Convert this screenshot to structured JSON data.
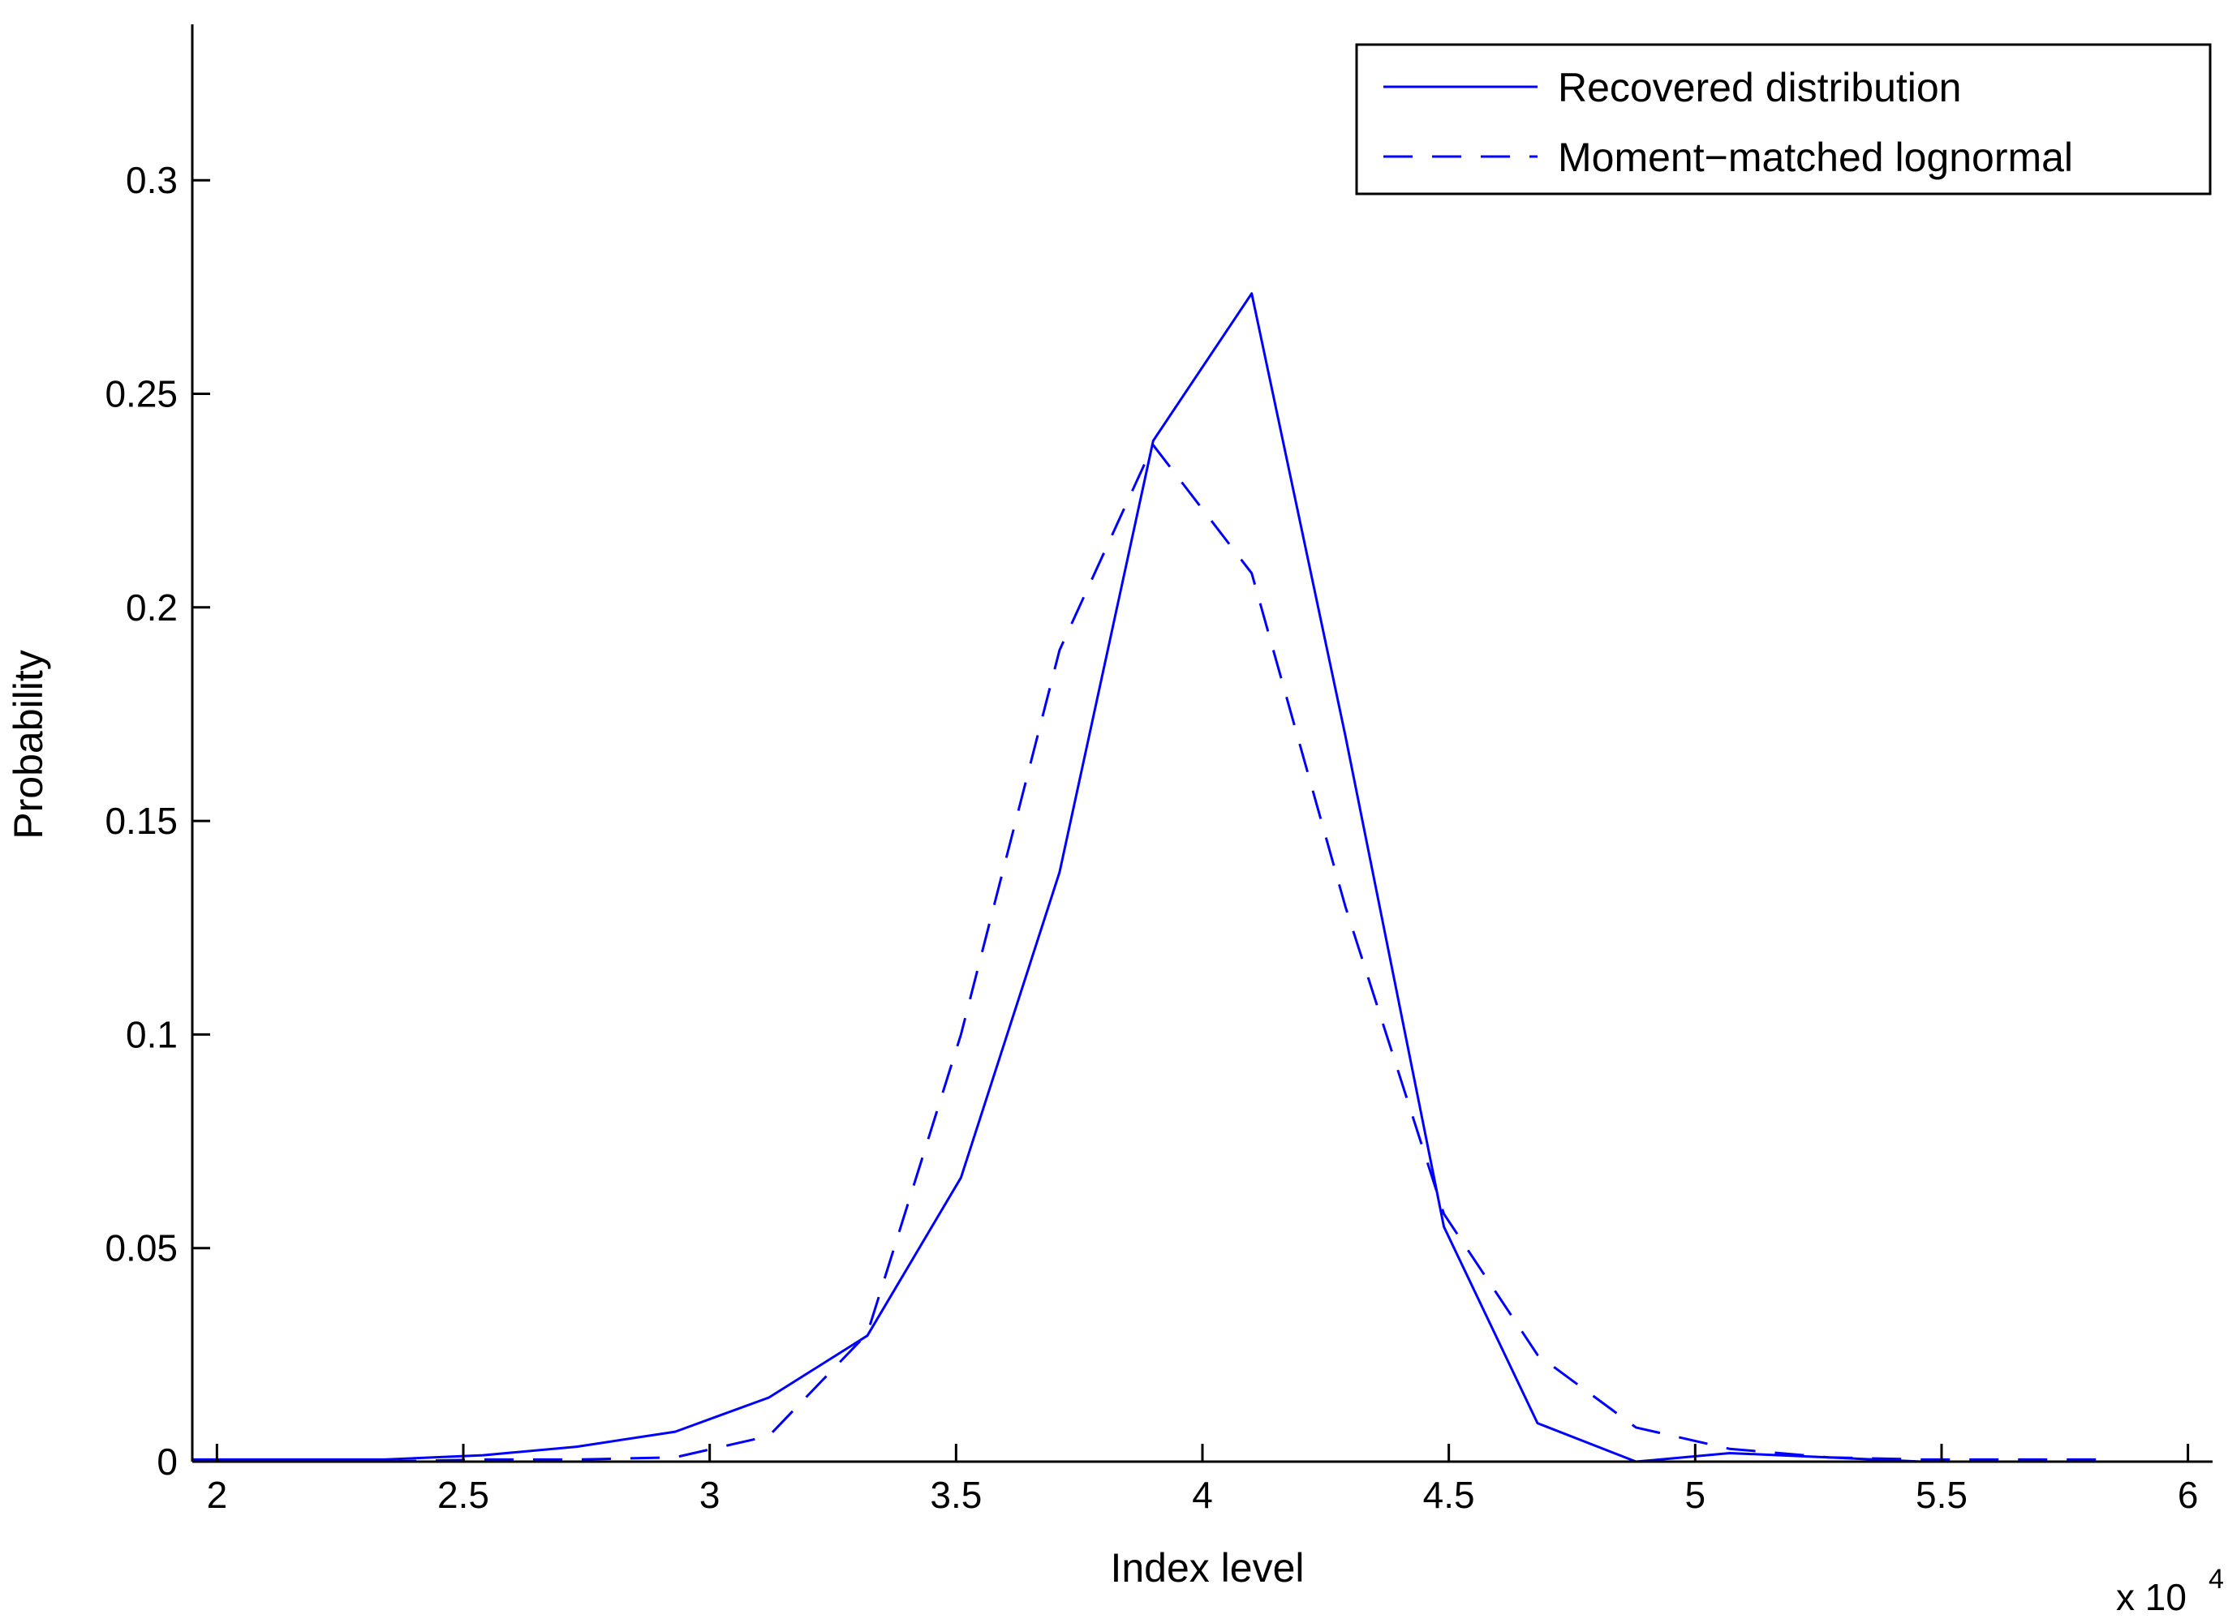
{
  "colors": {
    "series": "#0000ff",
    "axis": "#000000",
    "background": "#ffffff"
  },
  "chart_data": {
    "type": "line",
    "title": "",
    "xlabel": "Index level",
    "ylabel": "Probability",
    "x_multiplier_label": "x 10",
    "x_multiplier_exponent": "4",
    "xlim": [
      1.95,
      6.05
    ],
    "ylim": [
      0,
      0.3365
    ],
    "xticks": [
      2,
      2.5,
      3,
      3.5,
      4,
      4.5,
      5,
      5.5,
      6
    ],
    "xtick_labels": [
      "2",
      "2.5",
      "3",
      "3.5",
      "4",
      "4.5",
      "5",
      "5.5",
      "6"
    ],
    "yticks": [
      0,
      0.05,
      0.1,
      0.15,
      0.2,
      0.25,
      0.3
    ],
    "ytick_labels": [
      "0",
      "0.05",
      "0.1",
      "0.15",
      "0.2",
      "0.25",
      "0.3"
    ],
    "grid": false,
    "box": "left-bottom axes only",
    "legend_position": "top-right",
    "series": [
      {
        "name": "Recovered distribution",
        "style": "solid",
        "x": [
          1.95,
          2.15,
          2.34,
          2.54,
          2.73,
          2.93,
          3.12,
          3.32,
          3.51,
          3.71,
          3.9,
          4.1,
          4.29,
          4.49,
          4.68,
          4.88,
          5.07,
          5.27,
          5.46,
          5.66,
          5.85
        ],
        "y": [
          0.0005,
          0.0005,
          0.0005,
          0.0015,
          0.0035,
          0.007,
          0.015,
          0.0295,
          0.0665,
          0.138,
          0.239,
          0.2735,
          0.17,
          0.055,
          0.009,
          0.0,
          0.002,
          0.001,
          0.0,
          0.0,
          0.0
        ]
      },
      {
        "name": "Moment−matched lognormal",
        "style": "dashed",
        "x": [
          1.95,
          2.15,
          2.34,
          2.54,
          2.73,
          2.93,
          3.12,
          3.32,
          3.51,
          3.71,
          3.9,
          4.1,
          4.29,
          4.49,
          4.68,
          4.88,
          5.07,
          5.27,
          5.46,
          5.66,
          5.85
        ],
        "y": [
          0.0,
          0.0,
          0.0,
          0.0005,
          0.0005,
          0.001,
          0.006,
          0.03,
          0.1,
          0.19,
          0.238,
          0.208,
          0.13,
          0.058,
          0.025,
          0.008,
          0.003,
          0.001,
          0.0005,
          0.0005,
          0.0005
        ]
      }
    ]
  }
}
